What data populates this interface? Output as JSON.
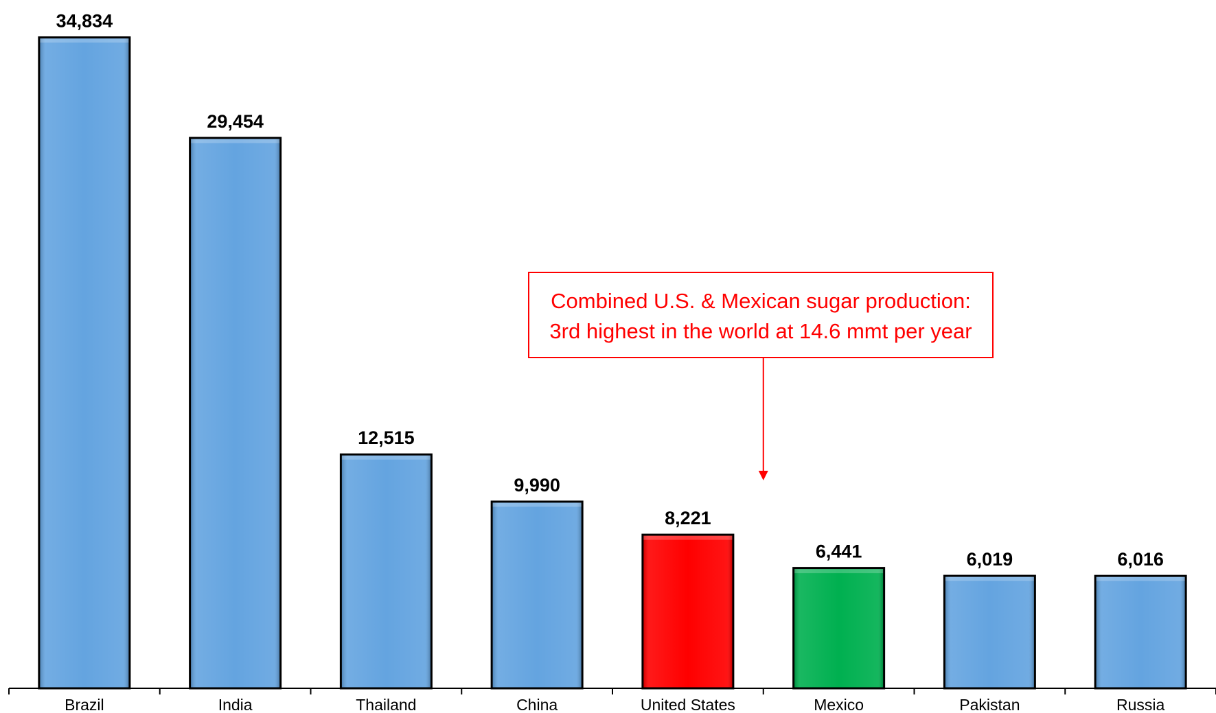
{
  "chart_data": {
    "type": "bar",
    "categories": [
      "Brazil",
      "India",
      "Thailand",
      "China",
      "United States",
      "Mexico",
      "Pakistan",
      "Russia"
    ],
    "values": [
      34834,
      29454,
      12515,
      9990,
      8221,
      6441,
      6019,
      6016
    ],
    "value_labels": [
      "34,834",
      "29,454",
      "12,515",
      "9,990",
      "8,221",
      "6,441",
      "6,019",
      "6,016"
    ],
    "bar_colors": [
      "#64a4e0",
      "#64a4e0",
      "#64a4e0",
      "#64a4e0",
      "#ff0000",
      "#00b050",
      "#64a4e0",
      "#64a4e0"
    ],
    "title": "",
    "xlabel": "",
    "ylabel": "",
    "ylim": [
      0,
      35000
    ],
    "grid": false,
    "annotation": {
      "lines": [
        "Combined U.S. & Mexican sugar production:",
        "3rd highest in the world at 14.6 mmt per year"
      ],
      "color": "#ff0000",
      "points_to": [
        "United States",
        "Mexico"
      ]
    }
  }
}
